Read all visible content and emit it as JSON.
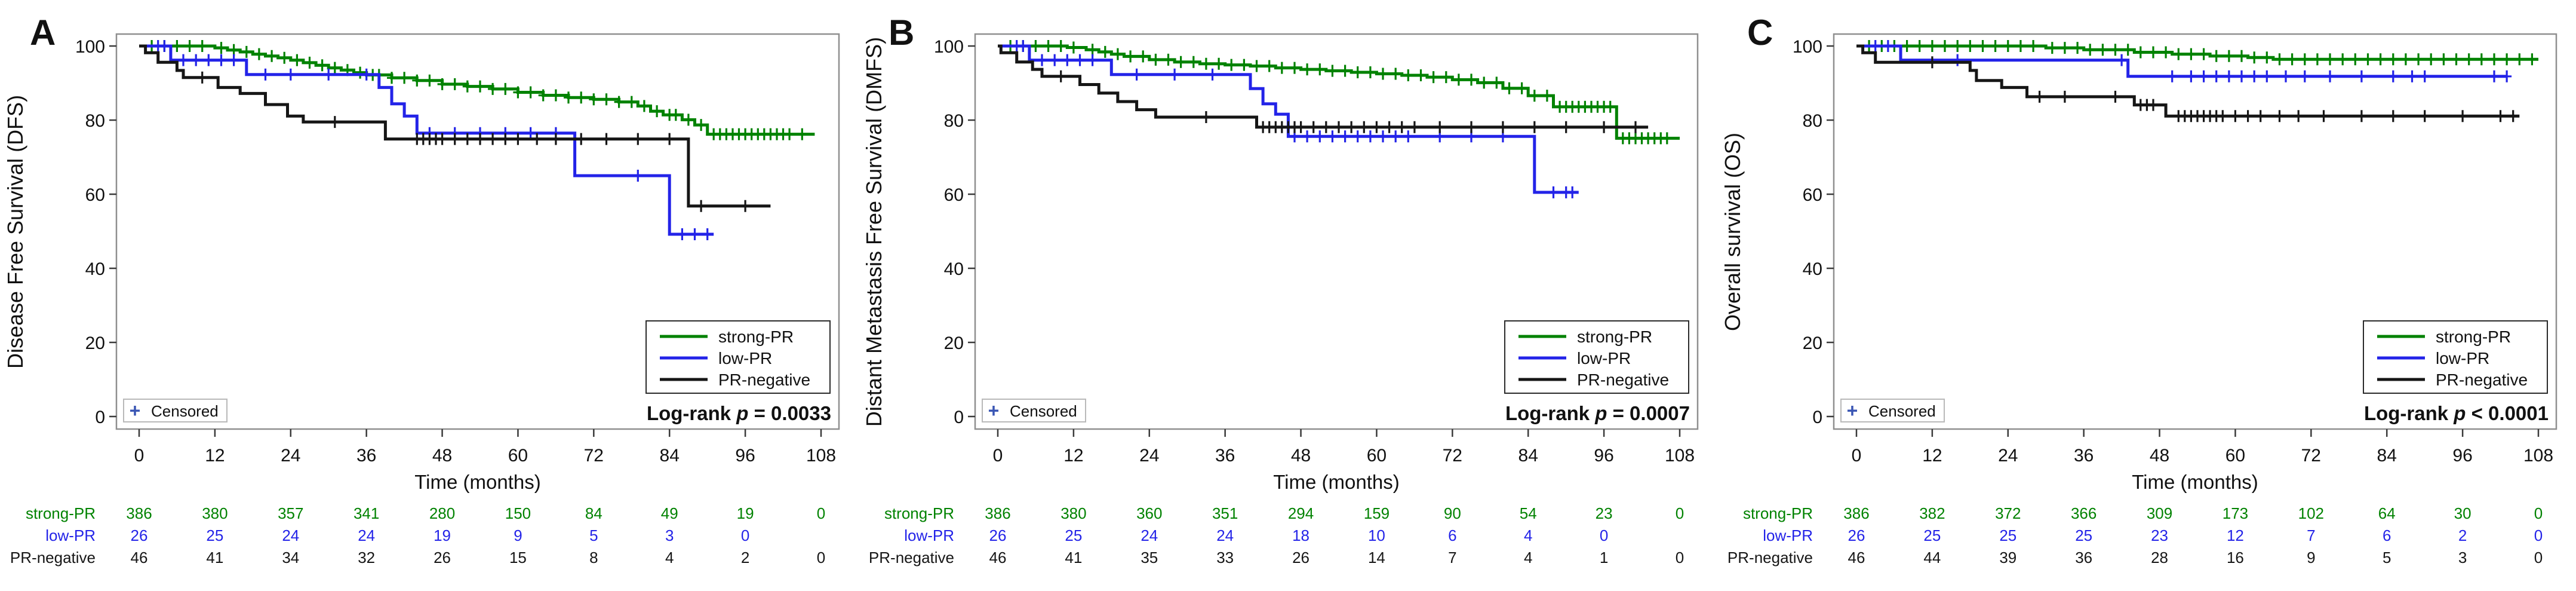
{
  "figure": {
    "background": "#ffffff",
    "x_axis_label": "Time (months)",
    "x_ticks": [
      0,
      12,
      24,
      36,
      48,
      60,
      72,
      84,
      96,
      108
    ],
    "y_ticks": [
      0,
      20,
      40,
      60,
      80,
      100
    ],
    "censored_label": "Censored",
    "censored_plus": "+",
    "colors": {
      "strong": "#008200",
      "low": "#2323e8",
      "neg": "#161616",
      "frame": "#8f8f8f",
      "tick": "#3a3a3a",
      "text": "#111111",
      "censor_plus": "#3a56b4",
      "legend_border": "#2a2a2a",
      "censored_border": "#b9b9b9"
    }
  },
  "chart_data": [
    {
      "id": "a",
      "type": "line",
      "letter": "A",
      "y_label": "Disease Free Survival (DFS)",
      "xlabel": "Time (months)",
      "xlim": [
        0,
        108
      ],
      "ylim": [
        0,
        100
      ],
      "legend_position": "lower right",
      "logrank": {
        "label": "Log-rank",
        "p": "p",
        "value": "= 0.0033"
      },
      "series": [
        {
          "key": "strong",
          "name": "strong-PR",
          "steps": [
            [
              0,
              100
            ],
            [
              12,
              99.5
            ],
            [
              14,
              98.9
            ],
            [
              16,
              98.4
            ],
            [
              18,
              97.8
            ],
            [
              20,
              97.3
            ],
            [
              22,
              96.8
            ],
            [
              24,
              96.2
            ],
            [
              26,
              95.5
            ],
            [
              28,
              94.8
            ],
            [
              30,
              94.1
            ],
            [
              32,
              93.5
            ],
            [
              34,
              92.8
            ],
            [
              36,
              92.2
            ],
            [
              40,
              91.4
            ],
            [
              44,
              90.7
            ],
            [
              48,
              89.7
            ],
            [
              52,
              89.1
            ],
            [
              56,
              88.4
            ],
            [
              60,
              87.5
            ],
            [
              64,
              86.7
            ],
            [
              68,
              86.1
            ],
            [
              72,
              85.6
            ],
            [
              76,
              84.9
            ],
            [
              79,
              83.8
            ],
            [
              81,
              82.4
            ],
            [
              83,
              81.4
            ],
            [
              86,
              80.1
            ],
            [
              88,
              78.7
            ],
            [
              90,
              76.2
            ],
            [
              107,
              76.2
            ]
          ],
          "censors": [
            2,
            4,
            6,
            8,
            10,
            13,
            15,
            17,
            19,
            21,
            23,
            25,
            27,
            29,
            31,
            33,
            35,
            37,
            38,
            40,
            42,
            44,
            46,
            48,
            50,
            52,
            54,
            56,
            58,
            60,
            62,
            64,
            66,
            68,
            70,
            72,
            74,
            76,
            78,
            80,
            82,
            84,
            85,
            87,
            89,
            91,
            92,
            93,
            94,
            95,
            96,
            97,
            98,
            99,
            100,
            101,
            102,
            103,
            105
          ]
        },
        {
          "key": "low",
          "name": "low-PR",
          "steps": [
            [
              0,
              100
            ],
            [
              5,
              96.2
            ],
            [
              17,
              92.3
            ],
            [
              38,
              88.8
            ],
            [
              40,
              84.4
            ],
            [
              42,
              81.1
            ],
            [
              44,
              76.5
            ],
            [
              69,
              65
            ],
            [
              84,
              49.2
            ],
            [
              91,
              49.2
            ]
          ],
          "censors": [
            3,
            4,
            7,
            9,
            11,
            13,
            15,
            20,
            24,
            30,
            36,
            46,
            50,
            54,
            58,
            62,
            66,
            79,
            86,
            88,
            90
          ]
        },
        {
          "key": "neg",
          "name": "PR-negative",
          "steps": [
            [
              0,
              100
            ],
            [
              1,
              98.2
            ],
            [
              3,
              95.6
            ],
            [
              6,
              93.4
            ],
            [
              7,
              91.5
            ],
            [
              12.5,
              88.8
            ],
            [
              16,
              87.2
            ],
            [
              20,
              84.2
            ],
            [
              23.5,
              81.1
            ],
            [
              26,
              79.5
            ],
            [
              39,
              74.9
            ],
            [
              87,
              56.8
            ],
            [
              100,
              56.8
            ]
          ],
          "censors": [
            10,
            31,
            44,
            45,
            46,
            47,
            48,
            50,
            52,
            54,
            56,
            58,
            60,
            63,
            66,
            70,
            74,
            79,
            84,
            89,
            96
          ]
        }
      ],
      "risk_table": {
        "rows": [
          {
            "key": "strong",
            "label": "strong-PR",
            "values": [
              "386",
              "380",
              "357",
              "341",
              "280",
              "150",
              "84",
              "49",
              "19",
              "0"
            ]
          },
          {
            "key": "low",
            "label": "low-PR",
            "values": [
              "26",
              "25",
              "24",
              "24",
              "19",
              "9",
              "5",
              "3",
              "0",
              ""
            ]
          },
          {
            "key": "neg",
            "label": "PR-negative",
            "values": [
              "46",
              "41",
              "34",
              "32",
              "26",
              "15",
              "8",
              "4",
              "2",
              "0"
            ]
          }
        ]
      }
    },
    {
      "id": "b",
      "type": "line",
      "letter": "B",
      "y_label": "Distant Metastasis Free Survival (DMFS)",
      "xlabel": "Time (months)",
      "xlim": [
        0,
        108
      ],
      "ylim": [
        0,
        100
      ],
      "legend_position": "lower right",
      "logrank": {
        "label": "Log-rank",
        "p": "p",
        "value": "= 0.0007"
      },
      "series": [
        {
          "key": "strong",
          "name": "strong-PR",
          "steps": [
            [
              0,
              100
            ],
            [
              11,
              99.6
            ],
            [
              14,
              99
            ],
            [
              16,
              98.4
            ],
            [
              18,
              97.8
            ],
            [
              20,
              97.2
            ],
            [
              24,
              96.3
            ],
            [
              28,
              95.7
            ],
            [
              32,
              95.2
            ],
            [
              36,
              94.9
            ],
            [
              40,
              94.6
            ],
            [
              44,
              94.1
            ],
            [
              48,
              93.7
            ],
            [
              52,
              93.3
            ],
            [
              56,
              92.9
            ],
            [
              60,
              92.5
            ],
            [
              64,
              92.1
            ],
            [
              68,
              91.6
            ],
            [
              72,
              90.9
            ],
            [
              76,
              90.1
            ],
            [
              80,
              88.6
            ],
            [
              84,
              86.6
            ],
            [
              88,
              83.6
            ],
            [
              98,
              75.1
            ],
            [
              108,
              75.1
            ]
          ],
          "censors": [
            2,
            4,
            6,
            8,
            10,
            12,
            15,
            17,
            19,
            21,
            23,
            25,
            27,
            29,
            31,
            33,
            35,
            37,
            39,
            41,
            43,
            45,
            47,
            49,
            51,
            53,
            55,
            57,
            59,
            61,
            63,
            65,
            67,
            69,
            71,
            73,
            75,
            77,
            79,
            81,
            83,
            85,
            87,
            89,
            90,
            91,
            92,
            93,
            94,
            95,
            96,
            97,
            99,
            100,
            101,
            102,
            103,
            104,
            105,
            106
          ]
        },
        {
          "key": "low",
          "name": "low-PR",
          "steps": [
            [
              0,
              100
            ],
            [
              5,
              96.2
            ],
            [
              18,
              92.3
            ],
            [
              40,
              88.5
            ],
            [
              42,
              84.4
            ],
            [
              44,
              81.6
            ],
            [
              46,
              75.6
            ],
            [
              85,
              60.5
            ],
            [
              92,
              60.5
            ]
          ],
          "censors": [
            3,
            4,
            7,
            9,
            11,
            13,
            15,
            22,
            28,
            34,
            47,
            49,
            51,
            53,
            55,
            57,
            59,
            61,
            63,
            65,
            70,
            75,
            80,
            88,
            90,
            91
          ]
        },
        {
          "key": "neg",
          "name": "PR-negative",
          "steps": [
            [
              0,
              100
            ],
            [
              0.5,
              98.2
            ],
            [
              3,
              95.7
            ],
            [
              5.5,
              93.7
            ],
            [
              7,
              91.8
            ],
            [
              13,
              89.6
            ],
            [
              16,
              87.3
            ],
            [
              19,
              85
            ],
            [
              22,
              82.8
            ],
            [
              25,
              80.8
            ],
            [
              41,
              78.1
            ],
            [
              103,
              78.1
            ]
          ],
          "censors": [
            10,
            33,
            42,
            43,
            44,
            45,
            46,
            47,
            48,
            50,
            52,
            54,
            56,
            58,
            60,
            62,
            64,
            66,
            70,
            75,
            80,
            85,
            90,
            96,
            101
          ]
        }
      ],
      "risk_table": {
        "rows": [
          {
            "key": "strong",
            "label": "strong-PR",
            "values": [
              "386",
              "380",
              "360",
              "351",
              "294",
              "159",
              "90",
              "54",
              "23",
              "0"
            ]
          },
          {
            "key": "low",
            "label": "low-PR",
            "values": [
              "26",
              "25",
              "24",
              "24",
              "18",
              "10",
              "6",
              "4",
              "0",
              ""
            ]
          },
          {
            "key": "neg",
            "label": "PR-negative",
            "values": [
              "46",
              "41",
              "35",
              "33",
              "26",
              "14",
              "7",
              "4",
              "1",
              "0"
            ]
          }
        ]
      }
    },
    {
      "id": "c",
      "type": "line",
      "letter": "C",
      "y_label": "Overall survival (OS)",
      "xlabel": "Time (months)",
      "xlim": [
        0,
        108
      ],
      "ylim": [
        0,
        100
      ],
      "legend_position": "lower right",
      "logrank": {
        "label": "Log-rank",
        "p": "p",
        "value": "< 0.0001"
      },
      "series": [
        {
          "key": "strong",
          "name": "strong-PR",
          "steps": [
            [
              0,
              100
            ],
            [
              30,
              99.5
            ],
            [
              36,
              99
            ],
            [
              44,
              98.3
            ],
            [
              50,
              97.8
            ],
            [
              56,
              97.3
            ],
            [
              62,
              96.9
            ],
            [
              66,
              96.4
            ],
            [
              108,
              96.4
            ]
          ],
          "censors": [
            2,
            4,
            6,
            8,
            10,
            12,
            14,
            16,
            18,
            20,
            22,
            24,
            26,
            28,
            31,
            33,
            35,
            37,
            39,
            41,
            43,
            45,
            47,
            49,
            51,
            53,
            55,
            57,
            59,
            61,
            63,
            65,
            67,
            69,
            71,
            73,
            75,
            77,
            79,
            81,
            83,
            85,
            87,
            89,
            91,
            93,
            95,
            97,
            99,
            101,
            103,
            105,
            107
          ]
        },
        {
          "key": "low",
          "name": "low-PR",
          "steps": [
            [
              0,
              100
            ],
            [
              7,
              96.2
            ],
            [
              43,
              91.8
            ],
            [
              103,
              91.8
            ]
          ],
          "censors": [
            3,
            5,
            16,
            42,
            50,
            53,
            55,
            57,
            59,
            61,
            63,
            65,
            68,
            71,
            75,
            80,
            85,
            88,
            90,
            101,
            103
          ]
        },
        {
          "key": "neg",
          "name": "PR-negative",
          "steps": [
            [
              0,
              100
            ],
            [
              1,
              98.2
            ],
            [
              3,
              95.6
            ],
            [
              18,
              93.4
            ],
            [
              19,
              90.7
            ],
            [
              23,
              88.8
            ],
            [
              27,
              86.3
            ],
            [
              44,
              84.1
            ],
            [
              49,
              81.1
            ],
            [
              105,
              81.1
            ]
          ],
          "censors": [
            12,
            29,
            33,
            41,
            45,
            46,
            47,
            51,
            52,
            53,
            54,
            55,
            56,
            57,
            58,
            60,
            62,
            64,
            67,
            70,
            74,
            80,
            85,
            90,
            96,
            102,
            104
          ]
        }
      ],
      "risk_table": {
        "rows": [
          {
            "key": "strong",
            "label": "strong-PR",
            "values": [
              "386",
              "382",
              "372",
              "366",
              "309",
              "173",
              "102",
              "64",
              "30",
              "0"
            ]
          },
          {
            "key": "low",
            "label": "low-PR",
            "values": [
              "26",
              "25",
              "25",
              "25",
              "23",
              "12",
              "7",
              "6",
              "2",
              "0"
            ]
          },
          {
            "key": "neg",
            "label": "PR-negative",
            "values": [
              "46",
              "44",
              "39",
              "36",
              "28",
              "16",
              "9",
              "5",
              "3",
              "0"
            ]
          }
        ]
      }
    }
  ]
}
